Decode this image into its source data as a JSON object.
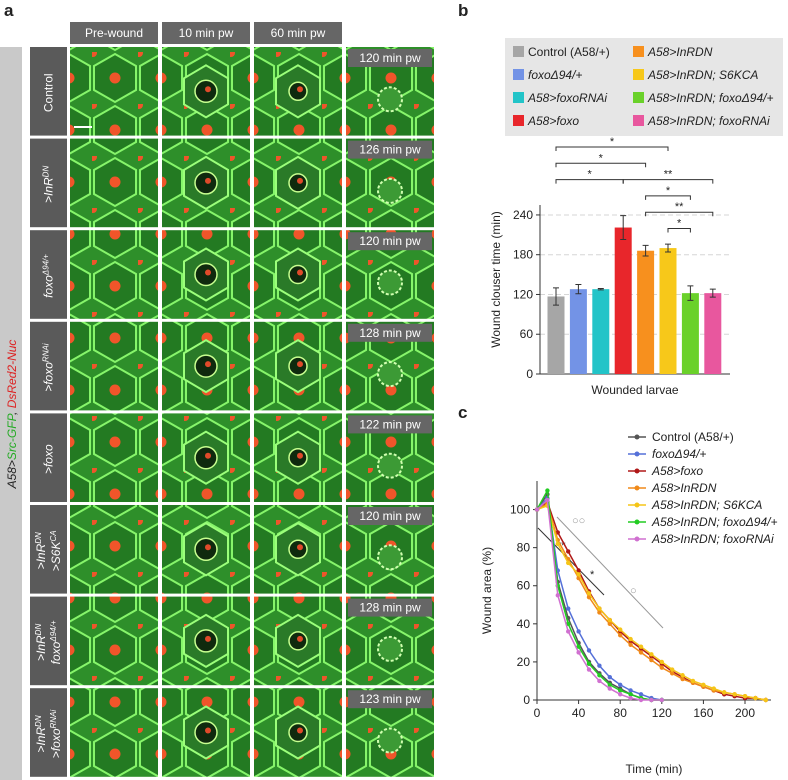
{
  "panel_a": {
    "panel_label": "a",
    "side_label": [
      {
        "text": "A58>",
        "color": "#222222"
      },
      {
        "text": "Src-GFP",
        "color": "#22aa22"
      },
      {
        "text": ", ",
        "color": "#222222"
      },
      {
        "text": "DsRed2-Nuc",
        "color": "#dd2222"
      }
    ],
    "columns": [
      "Pre-wound",
      "10 min pw",
      "60 min pw"
    ],
    "rows": [
      {
        "label": [
          [
            {
              "text": "Control"
            }
          ]
        ],
        "time": "120 min pw"
      },
      {
        "label": [
          [
            {
              "text": ">InR"
            },
            {
              "text": "DN",
              "sup": true
            }
          ]
        ],
        "time": "126 min pw"
      },
      {
        "label": [
          [
            {
              "text": "foxo"
            },
            {
              "text": "Δ94/+",
              "sup": true
            }
          ]
        ],
        "time": "120 min pw"
      },
      {
        "label": [
          [
            {
              "text": ">foxo"
            },
            {
              "text": "RNAi",
              "sup": true
            }
          ]
        ],
        "time": "128 min pw"
      },
      {
        "label": [
          [
            {
              "text": ">foxo"
            }
          ]
        ],
        "time": "122 min pw"
      },
      {
        "label": [
          [
            {
              "text": ">InR"
            },
            {
              "text": "DN",
              "sup": true
            }
          ],
          [
            {
              "text": ">S6K"
            },
            {
              "text": "CA",
              "sup": true
            }
          ]
        ],
        "time": "120 min pw"
      },
      {
        "label": [
          [
            {
              "text": ">InR"
            },
            {
              "text": "DN",
              "sup": true
            }
          ],
          [
            {
              "text": "foxo"
            },
            {
              "text": "Δ94/+",
              "sup": true
            }
          ]
        ],
        "time": "128 min pw"
      },
      {
        "label": [
          [
            {
              "text": ">InR"
            },
            {
              "text": "DN",
              "sup": true
            }
          ],
          [
            {
              "text": ">foxo"
            },
            {
              "text": "RNAi",
              "sup": true
            }
          ]
        ],
        "time": "123 min pw"
      }
    ]
  },
  "chart_data": [
    {
      "type": "bar",
      "panel_label": "b",
      "x_label": "Wounded larvae",
      "y_label": "Wound clouser time (min)",
      "ylim": [
        0,
        255
      ],
      "yticks": [
        0,
        60,
        120,
        180,
        240
      ],
      "grid": true,
      "series": [
        {
          "name": "Control (A58/+)",
          "color": "#a6a6a6",
          "values": [
            117
          ],
          "errors": [
            13
          ]
        },
        {
          "name": "foxoΔ94/+",
          "color": "#7393e6",
          "values": [
            128
          ],
          "errors": [
            7
          ]
        },
        {
          "name": "A58>foxoRNAi",
          "color": "#22c4c8",
          "values": [
            128
          ],
          "errors": [
            1
          ]
        },
        {
          "name": "A58>foxo",
          "color": "#e8262b",
          "values": [
            221
          ],
          "errors": [
            18
          ]
        },
        {
          "name": "A58>InRDN",
          "color": "#f7901e",
          "values": [
            186
          ],
          "errors": [
            8
          ]
        },
        {
          "name": "A58>InRDN; S6KCA",
          "color": "#f7c81a",
          "values": [
            190
          ],
          "errors": [
            6
          ]
        },
        {
          "name": "A58>InRDN; foxoΔ94/+",
          "color": "#6ad12a",
          "values": [
            122
          ],
          "errors": [
            11
          ]
        },
        {
          "name": "A58>InRDN; foxoRNAi",
          "color": "#e8579e",
          "values": [
            122
          ],
          "errors": [
            6
          ]
        }
      ],
      "significance": [
        {
          "from": 0,
          "to": 5,
          "label": "*"
        },
        {
          "from": 0,
          "to": 4,
          "label": "*"
        },
        {
          "from": 0,
          "to": 3,
          "label": "*"
        },
        {
          "from": 3,
          "to": 7,
          "label": "**"
        },
        {
          "from": 4,
          "to": 6,
          "label": "*"
        },
        {
          "from": 4,
          "to": 7,
          "label": "**"
        },
        {
          "from": 5,
          "to": 6,
          "label": "*"
        }
      ]
    },
    {
      "type": "line",
      "panel_label": "c",
      "x_label": "Time (min)",
      "y_label": "Wound area (%)",
      "xlim": [
        0,
        225
      ],
      "ylim": [
        0,
        115
      ],
      "xticks": [
        0,
        40,
        80,
        120,
        160,
        200
      ],
      "yticks": [
        0,
        20,
        40,
        60,
        80,
        100
      ],
      "x": [
        0,
        10,
        20,
        30,
        40,
        50,
        60,
        70,
        80,
        90,
        100,
        110,
        120,
        130,
        140,
        150,
        160,
        170,
        180,
        190,
        200,
        210,
        220
      ],
      "series": [
        {
          "name": "Control (A58/+)",
          "color": "#555555",
          "values": [
            100,
            108,
            62,
            43,
            30,
            20,
            14,
            9,
            6,
            3,
            1,
            0,
            0,
            null,
            null,
            null,
            null,
            null,
            null,
            null,
            null,
            null,
            null
          ]
        },
        {
          "name": "foxoΔ94/+",
          "color": "#5570d8",
          "values": [
            100,
            106,
            68,
            48,
            36,
            26,
            18,
            12,
            8,
            5,
            3,
            1,
            0,
            null,
            null,
            null,
            null,
            null,
            null,
            null,
            null,
            null,
            null
          ]
        },
        {
          "name": "A58>foxo",
          "color": "#b01818",
          "values": [
            100,
            104,
            88,
            78,
            68,
            57,
            48,
            42,
            36,
            31,
            27,
            23,
            19,
            15,
            12,
            9,
            7,
            5,
            3,
            2,
            1,
            1,
            0
          ]
        },
        {
          "name": "A58>InRDN",
          "color": "#f08a1a",
          "values": [
            100,
            103,
            84,
            74,
            64,
            54,
            46,
            40,
            34,
            29,
            25,
            21,
            17,
            14,
            11,
            9,
            7,
            5,
            4,
            3,
            2,
            1,
            0
          ]
        },
        {
          "name": "A58>InRDN; S6KCA",
          "color": "#f5c518",
          "values": [
            100,
            102,
            82,
            72,
            66,
            56,
            48,
            42,
            37,
            32,
            28,
            24,
            20,
            16,
            13,
            10,
            8,
            6,
            4,
            3,
            2,
            1,
            0
          ]
        },
        {
          "name": "A58>InRDN; foxoΔ94/+",
          "color": "#22cc22",
          "values": [
            100,
            110,
            60,
            40,
            28,
            19,
            13,
            8,
            5,
            3,
            1,
            0,
            0,
            null,
            null,
            null,
            null,
            null,
            null,
            null,
            null,
            null,
            null
          ]
        },
        {
          "name": "A58>InRDN; foxoRNAi",
          "color": "#d070d0",
          "values": [
            100,
            105,
            55,
            36,
            25,
            16,
            10,
            6,
            3,
            1,
            0,
            0,
            0,
            null,
            null,
            null,
            null,
            null,
            null,
            null,
            null,
            null,
            null
          ]
        }
      ],
      "annotations": [
        "**",
        "*",
        "○○",
        "○"
      ]
    }
  ]
}
